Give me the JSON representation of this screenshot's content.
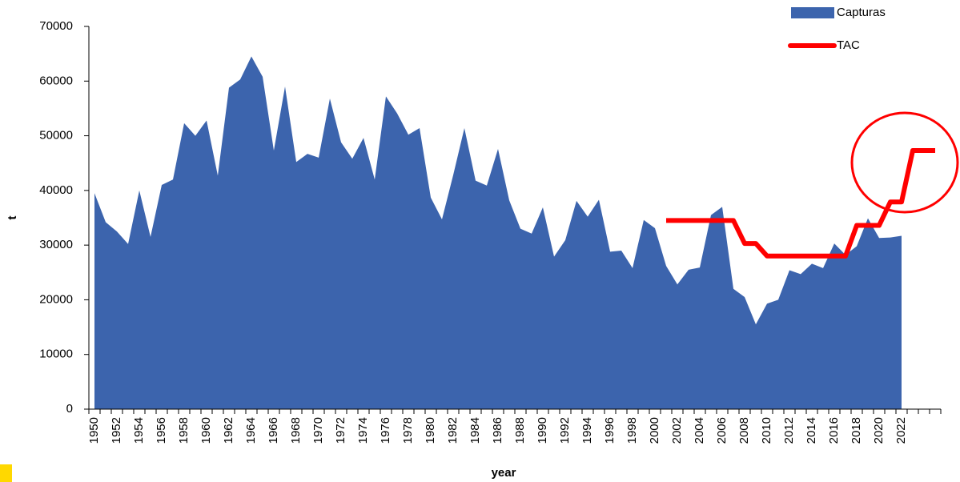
{
  "chart_data": {
    "type": "area",
    "x_label": "year",
    "y_label": "t",
    "categories": [
      1950,
      null,
      1952,
      null,
      1954,
      null,
      1956,
      null,
      1958,
      null,
      1960,
      null,
      1962,
      null,
      1964,
      null,
      1966,
      null,
      1968,
      null,
      1970,
      null,
      1972,
      null,
      1974,
      null,
      1976,
      null,
      1978,
      null,
      1980,
      null,
      1982,
      null,
      1984,
      null,
      1986,
      null,
      1988,
      null,
      1990,
      null,
      1992,
      null,
      1994,
      null,
      1996,
      null,
      1998,
      null,
      2000,
      null,
      2002,
      null,
      2004,
      null,
      2006,
      null,
      2008,
      null,
      2010,
      null,
      2012,
      null,
      2014,
      null,
      2016,
      null,
      2018,
      null,
      2020,
      null,
      2022,
      null,
      null,
      null
    ],
    "series": [
      {
        "name": "Capturas",
        "color": "#3c64ad",
        "type": "area",
        "values": [
          39500,
          34200,
          32500,
          30200,
          40000,
          31500,
          41000,
          42000,
          52300,
          50000,
          52800,
          42700,
          58800,
          60300,
          64500,
          60800,
          47300,
          59000,
          45200,
          46700,
          46000,
          56800,
          48800,
          45800,
          49600,
          42000,
          57200,
          54100,
          50200,
          51400,
          38700,
          34700,
          42800,
          51400,
          41800,
          40900,
          47600,
          38200,
          33000,
          32100,
          36900,
          27900,
          30900,
          38100,
          35200,
          38300,
          28800,
          29000,
          25800,
          34600,
          33100,
          26200,
          22800,
          25500,
          25900,
          35500,
          37000,
          22000,
          20500,
          15500,
          19300,
          20000,
          25400,
          24700,
          26600,
          25800,
          30300,
          28200,
          29800,
          34900,
          31300,
          31400,
          31700,
          null,
          null,
          null
        ]
      },
      {
        "name": "TAC",
        "color": "#ff0000",
        "type": "line",
        "values": [
          null,
          null,
          null,
          null,
          null,
          null,
          null,
          null,
          null,
          null,
          null,
          null,
          null,
          null,
          null,
          null,
          null,
          null,
          null,
          null,
          null,
          null,
          null,
          null,
          null,
          null,
          null,
          null,
          null,
          null,
          null,
          null,
          null,
          null,
          null,
          null,
          null,
          null,
          null,
          null,
          null,
          null,
          null,
          null,
          null,
          null,
          null,
          null,
          null,
          null,
          null,
          34500,
          34500,
          34500,
          34500,
          34500,
          34500,
          34500,
          30300,
          30300,
          28000,
          28000,
          28000,
          28000,
          28000,
          28000,
          28000,
          28000,
          33600,
          33600,
          33600,
          37900,
          37900,
          47300,
          47300,
          47300
        ]
      }
    ],
    "ylim": [
      0,
      70000
    ],
    "yticks": [
      0,
      10000,
      20000,
      30000,
      40000,
      50000,
      60000,
      70000
    ]
  }
}
